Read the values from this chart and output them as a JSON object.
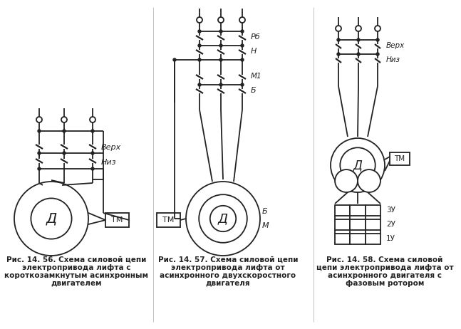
{
  "background_color": "#ffffff",
  "caption1_line1": "Рис. 14. 56. Схема силовой цепи",
  "caption1_line2": "электропривода лифта с",
  "caption1_line3": "короткозамкнутым асинхронным",
  "caption1_line4": "двигателем",
  "caption2_line1": "Рис. 14. 57. Схема силовой цепи",
  "caption2_line2": "электропривода лифта от",
  "caption2_line3": "асинхронного двухскоростного",
  "caption2_line4": "двигателя",
  "caption3_line1": "Рис. 14. 58. Схема силовой",
  "caption3_line2": "цепи электропривода лифта от",
  "caption3_line3": "асинхронного двигателя с",
  "caption3_line4": "фазовым ротором",
  "line_color": "#222222",
  "font_size_caption": 7.5,
  "fig_width": 6.47,
  "fig_height": 4.62
}
